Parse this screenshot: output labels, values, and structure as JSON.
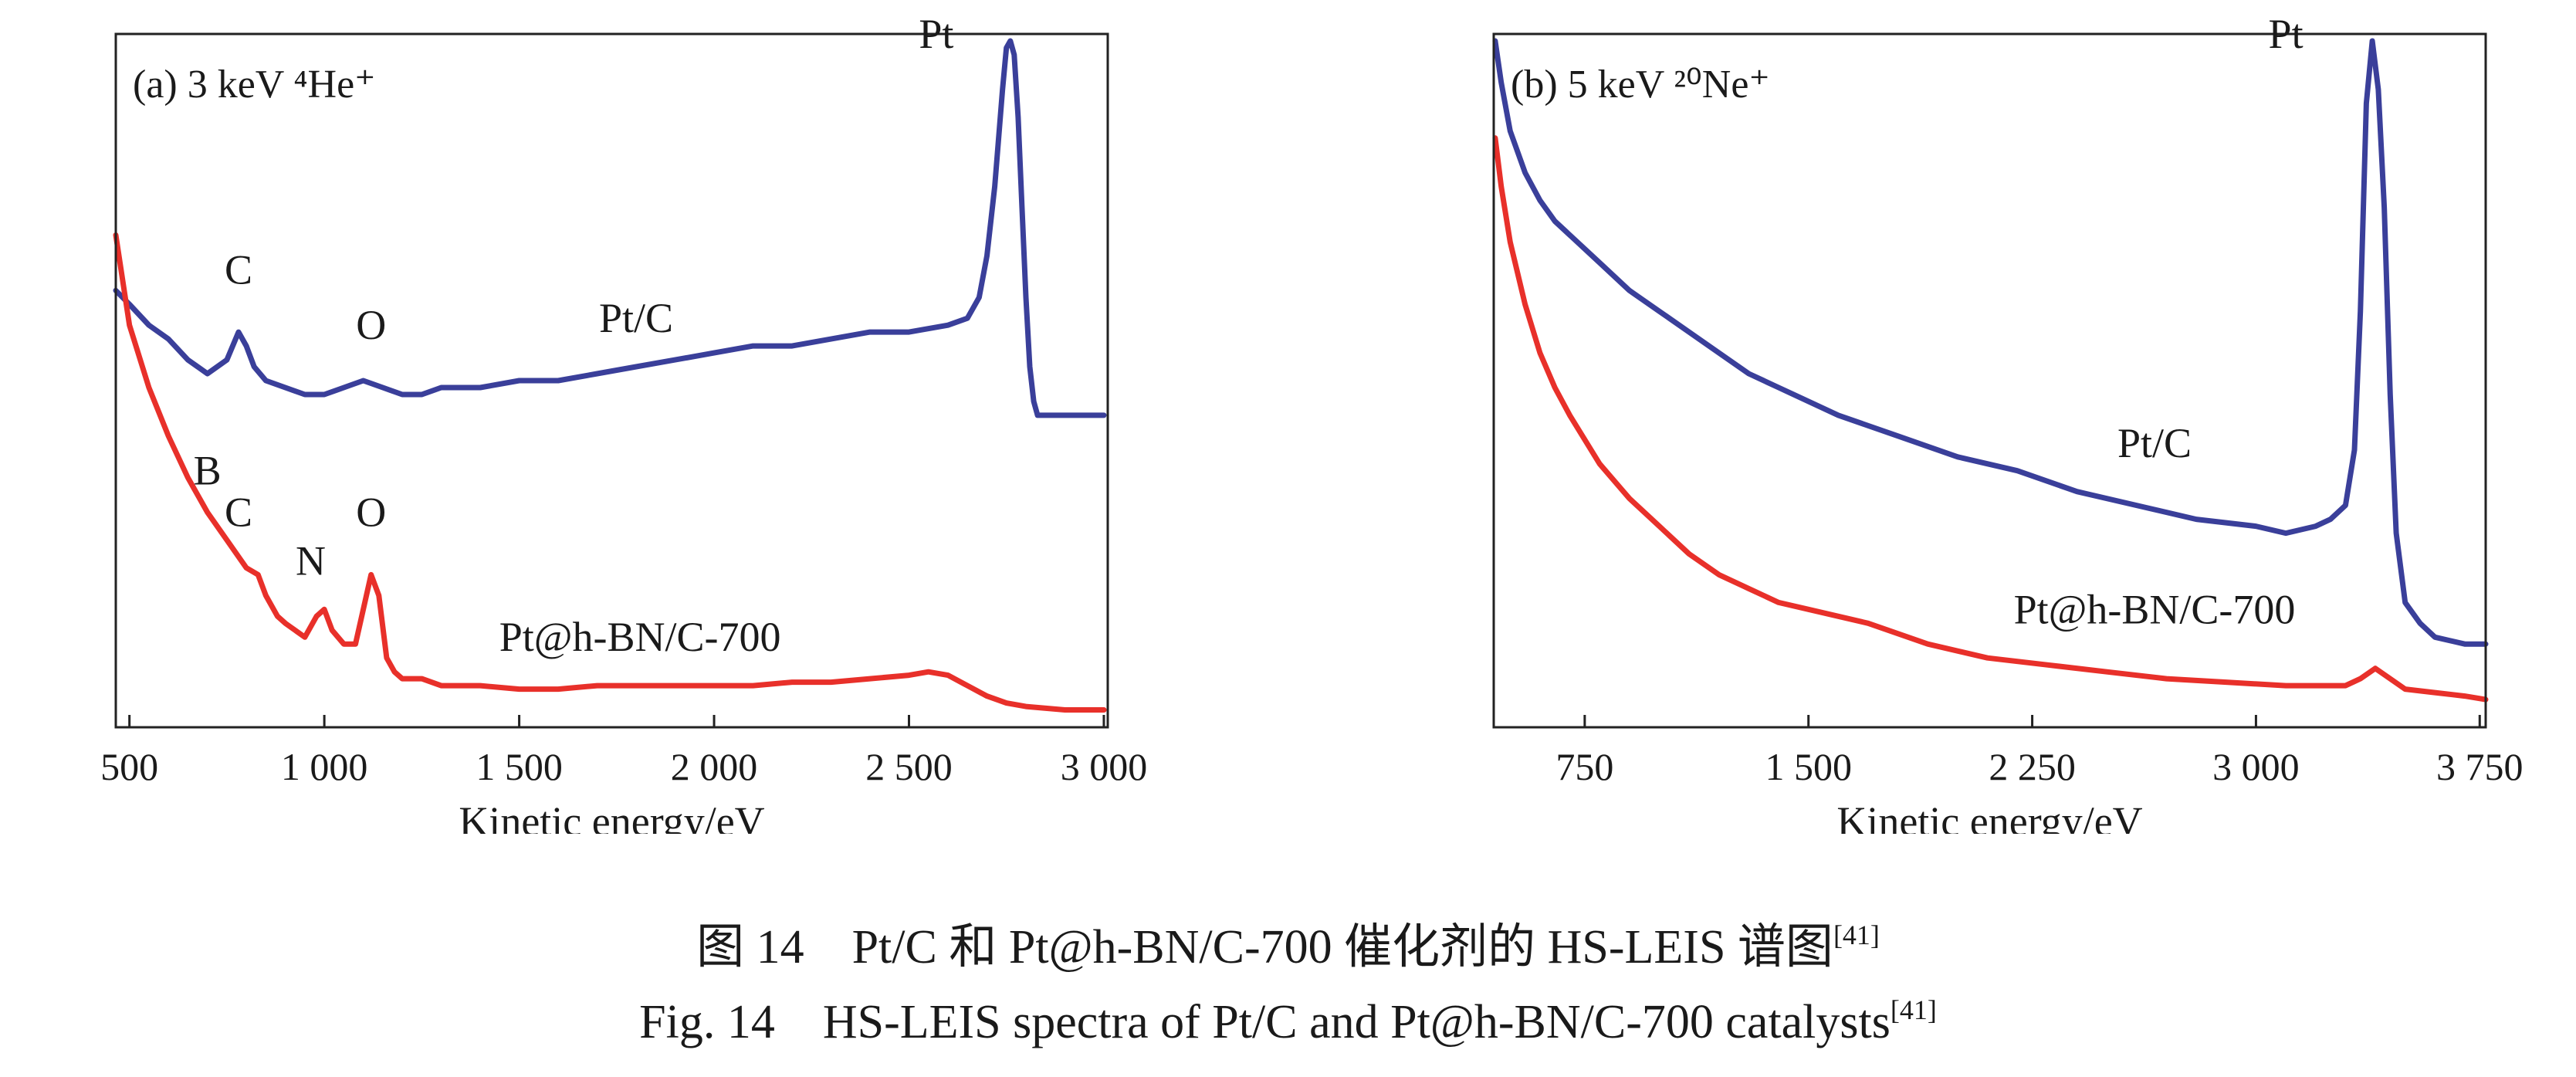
{
  "colors": {
    "pt_c": "#3a3f9a",
    "pt_hbn": "#e8302a",
    "frame": "#222222"
  },
  "chart_data": [
    {
      "type": "line",
      "panel_label": "(a) 3 keV ⁴He⁺",
      "xlabel": "Kinetic energy/eV",
      "ylabel": "",
      "xlim": [
        465,
        3010
      ],
      "ylim": [
        0,
        1
      ],
      "x_ticks": [
        500,
        1000,
        1500,
        2000,
        2500,
        3000
      ],
      "x_tick_labels": [
        "500",
        "1 000",
        "1 500",
        "2 000",
        "2 500",
        "3 000"
      ],
      "grid": false,
      "series": [
        {
          "name": "Pt/C",
          "color": "#3a3f9a",
          "x": [
            465,
            500,
            550,
            600,
            650,
            700,
            750,
            780,
            800,
            820,
            850,
            900,
            950,
            1000,
            1050,
            1100,
            1150,
            1200,
            1250,
            1300,
            1400,
            1500,
            1600,
            1700,
            1800,
            1900,
            2000,
            2100,
            2200,
            2300,
            2400,
            2500,
            2600,
            2650,
            2680,
            2700,
            2720,
            2740,
            2750,
            2760,
            2770,
            2780,
            2790,
            2800,
            2810,
            2820,
            2830,
            2850,
            2900,
            2950,
            3000
          ],
          "y": [
            0.63,
            0.61,
            0.58,
            0.56,
            0.53,
            0.51,
            0.53,
            0.57,
            0.55,
            0.52,
            0.5,
            0.49,
            0.48,
            0.48,
            0.49,
            0.5,
            0.49,
            0.48,
            0.48,
            0.49,
            0.49,
            0.5,
            0.5,
            0.51,
            0.52,
            0.53,
            0.54,
            0.55,
            0.55,
            0.56,
            0.57,
            0.57,
            0.58,
            0.59,
            0.62,
            0.68,
            0.78,
            0.92,
            0.98,
            0.99,
            0.97,
            0.88,
            0.75,
            0.62,
            0.52,
            0.47,
            0.45,
            0.45,
            0.45,
            0.45,
            0.45
          ]
        },
        {
          "name": "Pt@h-BN/C-700",
          "color": "#e8302a",
          "x": [
            465,
            500,
            550,
            600,
            650,
            700,
            750,
            800,
            830,
            850,
            880,
            900,
            950,
            980,
            1000,
            1020,
            1050,
            1080,
            1100,
            1120,
            1140,
            1160,
            1180,
            1200,
            1250,
            1300,
            1400,
            1500,
            1600,
            1700,
            1800,
            1900,
            2000,
            2100,
            2200,
            2300,
            2400,
            2500,
            2550,
            2600,
            2650,
            2700,
            2750,
            2800,
            2900,
            3000
          ],
          "y": [
            0.71,
            0.58,
            0.49,
            0.42,
            0.36,
            0.31,
            0.27,
            0.23,
            0.22,
            0.19,
            0.16,
            0.15,
            0.13,
            0.16,
            0.17,
            0.14,
            0.12,
            0.12,
            0.17,
            0.22,
            0.19,
            0.1,
            0.08,
            0.07,
            0.07,
            0.06,
            0.06,
            0.055,
            0.055,
            0.06,
            0.06,
            0.06,
            0.06,
            0.06,
            0.065,
            0.065,
            0.07,
            0.075,
            0.08,
            0.075,
            0.06,
            0.045,
            0.035,
            0.03,
            0.025,
            0.025
          ]
        }
      ],
      "annotations": [
        {
          "text": "Pt",
          "x": 2570,
          "y": 0.98
        },
        {
          "text": "C",
          "x": 780,
          "y": 0.64
        },
        {
          "text": "O",
          "x": 1120,
          "y": 0.56
        },
        {
          "text": "Pt/C",
          "x": 1800,
          "y": 0.57
        },
        {
          "text": "B",
          "x": 700,
          "y": 0.35
        },
        {
          "text": "C",
          "x": 780,
          "y": 0.29
        },
        {
          "text": "N",
          "x": 965,
          "y": 0.22
        },
        {
          "text": "O",
          "x": 1120,
          "y": 0.29
        },
        {
          "text": "Pt@h-BN/C-700",
          "x": 1810,
          "y": 0.11
        }
      ]
    },
    {
      "type": "line",
      "panel_label": "(b) 5 keV ²⁰Ne⁺",
      "xlabel": "Kinetic energy/eV",
      "ylabel": "",
      "xlim": [
        445,
        3770
      ],
      "ylim": [
        0,
        1
      ],
      "x_ticks": [
        750,
        1500,
        2250,
        3000,
        3750
      ],
      "x_tick_labels": [
        "750",
        "1 500",
        "2 250",
        "3 000",
        "3 750"
      ],
      "grid": false,
      "series": [
        {
          "name": "Pt/C",
          "color": "#3a3f9a",
          "x": [
            450,
            470,
            500,
            550,
            600,
            650,
            700,
            800,
            900,
            1000,
            1100,
            1200,
            1300,
            1400,
            1500,
            1600,
            1800,
            2000,
            2200,
            2400,
            2600,
            2800,
            3000,
            3100,
            3200,
            3250,
            3300,
            3330,
            3350,
            3370,
            3390,
            3410,
            3430,
            3450,
            3470,
            3500,
            3550,
            3600,
            3700,
            3770
          ],
          "y": [
            0.99,
            0.93,
            0.86,
            0.8,
            0.76,
            0.73,
            0.71,
            0.67,
            0.63,
            0.6,
            0.57,
            0.54,
            0.51,
            0.49,
            0.47,
            0.45,
            0.42,
            0.39,
            0.37,
            0.34,
            0.32,
            0.3,
            0.29,
            0.28,
            0.29,
            0.3,
            0.32,
            0.4,
            0.6,
            0.9,
            0.99,
            0.92,
            0.75,
            0.48,
            0.28,
            0.18,
            0.15,
            0.13,
            0.12,
            0.12
          ]
        },
        {
          "name": "Pt@h-BN/C-700",
          "color": "#e8302a",
          "x": [
            450,
            470,
            500,
            550,
            600,
            650,
            700,
            800,
            900,
            1000,
            1100,
            1200,
            1300,
            1400,
            1500,
            1700,
            1900,
            2100,
            2300,
            2500,
            2700,
            2900,
            3100,
            3300,
            3350,
            3400,
            3450,
            3500,
            3600,
            3700,
            3770
          ],
          "y": [
            0.85,
            0.78,
            0.7,
            0.61,
            0.54,
            0.49,
            0.45,
            0.38,
            0.33,
            0.29,
            0.25,
            0.22,
            0.2,
            0.18,
            0.17,
            0.15,
            0.12,
            0.1,
            0.09,
            0.08,
            0.07,
            0.065,
            0.06,
            0.06,
            0.07,
            0.085,
            0.07,
            0.055,
            0.05,
            0.045,
            0.04
          ]
        }
      ],
      "annotations": [
        {
          "text": "Pt",
          "x": 3100,
          "y": 0.98
        },
        {
          "text": "Pt/C",
          "x": 2660,
          "y": 0.39
        },
        {
          "text": "Pt@h-BN/C-700",
          "x": 2660,
          "y": 0.15
        }
      ]
    }
  ],
  "caption": {
    "cn": "图 14　Pt/C 和 Pt@h-BN/C-700 催化剂的 HS-LEIS 谱图",
    "en": "Fig. 14　HS-LEIS spectra of Pt/C and Pt@h-BN/C-700 catalysts",
    "ref": "[41]"
  }
}
